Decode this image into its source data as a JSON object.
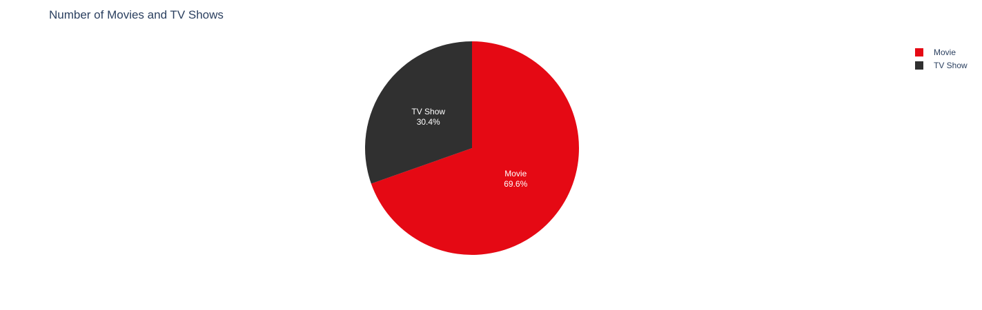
{
  "chart_data": {
    "type": "pie",
    "title": "Number of Movies and TV Shows",
    "labels": [
      "Movie",
      "TV Show"
    ],
    "percentages": [
      69.6,
      30.4
    ],
    "percent_labels": [
      "69.6%",
      "30.4%"
    ],
    "colors": [
      "#E50914",
      "#303030"
    ],
    "legend": {
      "position": "top-right",
      "items": [
        "Movie",
        "TV Show"
      ]
    },
    "direction": "clockwise",
    "start": "top"
  }
}
